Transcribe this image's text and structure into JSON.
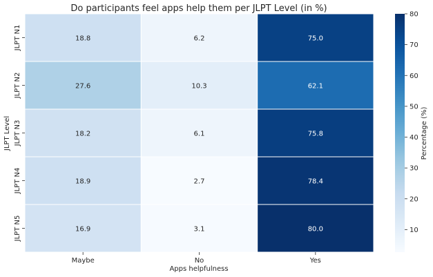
{
  "chart_data": {
    "type": "heatmap",
    "title": "Do participants feel apps help them per JLPT Level (in %)",
    "xlabel": "Apps helpfulness",
    "ylabel": "JLPT Level",
    "x_categories": [
      "Maybe",
      "No",
      "Yes"
    ],
    "y_categories": [
      "JLPT N1",
      "JLPT N2",
      "JLPT N3",
      "JLPT N4",
      "JLPT N5"
    ],
    "values": [
      [
        18.8,
        6.2,
        75.0
      ],
      [
        27.6,
        10.3,
        62.1
      ],
      [
        18.2,
        6.1,
        75.8
      ],
      [
        18.9,
        2.7,
        78.4
      ],
      [
        16.9,
        3.1,
        80.0
      ]
    ],
    "colorbar": {
      "label": "Percentage (%)",
      "range": [
        2.7,
        80.0
      ],
      "ticks": [
        10,
        20,
        30,
        40,
        50,
        60,
        70,
        80
      ],
      "colormap": "Blues"
    }
  }
}
